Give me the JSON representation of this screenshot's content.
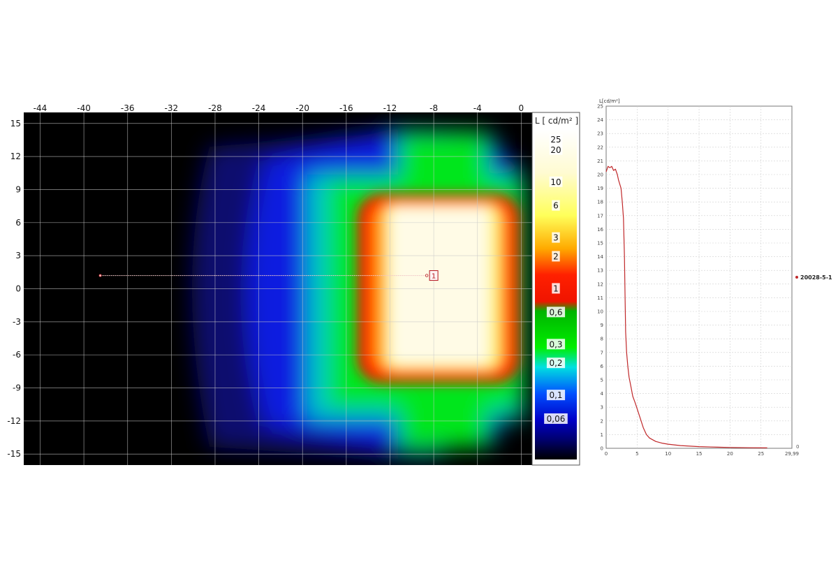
{
  "chart_data": [
    {
      "type": "heatmap",
      "title": "",
      "colorbar": {
        "title": "L [ cd/m² ]",
        "labels": [
          "25",
          "20",
          "10",
          "6",
          "3",
          "2",
          "1",
          "0,6",
          "0,3",
          "0,2",
          "0,1",
          "0,06"
        ],
        "label_values": [
          25,
          20,
          10,
          6,
          3,
          2,
          1,
          0.6,
          0.3,
          0.2,
          0.1,
          0.06
        ]
      },
      "x_axis": {
        "ticks": [
          "-44",
          "-40",
          "-36",
          "-32",
          "-28",
          "-24",
          "-20",
          "-16",
          "-12",
          "-8",
          "-4",
          "0"
        ],
        "tick_values": [
          -44,
          -40,
          -36,
          -32,
          -28,
          -24,
          -20,
          -16,
          -12,
          -8,
          -4,
          0
        ],
        "range": [
          -45.5,
          1.0
        ],
        "position": "top"
      },
      "y_axis": {
        "ticks": [
          "15",
          "12",
          "9",
          "6",
          "3",
          "0",
          "-3",
          "-6",
          "-9",
          "-12",
          "-15"
        ],
        "tick_values": [
          15,
          12,
          9,
          6,
          3,
          0,
          -3,
          -6,
          -9,
          -12,
          -15
        ],
        "range": [
          -16,
          16
        ]
      },
      "grid": true,
      "luminous_zone": {
        "x_range": [
          -12,
          -4
        ],
        "y_range": [
          -7,
          8
        ],
        "peak_luminance": 20.5
      },
      "profile_line": {
        "start": [
          -38.5,
          1.2
        ],
        "end": [
          -8,
          1.2
        ],
        "marker_label": "1"
      },
      "colors": {
        "background": "#000000",
        "grid": "#c8c8c8",
        "marker": "#b4141e"
      }
    },
    {
      "type": "line",
      "title": "",
      "ylabel": "L[cd/m²]",
      "xlabel": "",
      "x_ticks": [
        "0",
        "5",
        "10",
        "15",
        "20",
        "25",
        "29,99"
      ],
      "x_tick_values": [
        0,
        5,
        10,
        15,
        20,
        25,
        29.99
      ],
      "y_ticks": [
        "0",
        "1",
        "2",
        "3",
        "4",
        "5",
        "6",
        "7",
        "8",
        "9",
        "10",
        "11",
        "12",
        "13",
        "14",
        "15",
        "16",
        "17",
        "18",
        "19",
        "20",
        "21",
        "22",
        "23",
        "24",
        "25"
      ],
      "xlim": [
        0,
        29.99
      ],
      "ylim": [
        0,
        25
      ],
      "grid": true,
      "legend": {
        "position": "right",
        "entries": [
          "20028-5-1"
        ]
      },
      "end_marker": "0",
      "series": [
        {
          "name": "20028-5-1",
          "color": "#c0282a",
          "x": [
            0,
            0.3,
            0.6,
            0.9,
            1.2,
            1.5,
            1.8,
            2.0,
            2.2,
            2.4,
            2.6,
            2.8,
            2.95,
            3.05,
            3.15,
            3.3,
            3.5,
            3.7,
            4.0,
            4.3,
            4.7,
            5.0,
            5.5,
            6.0,
            6.5,
            7.0,
            8.0,
            9.0,
            10.0,
            12.0,
            15.0,
            18.0,
            20.0,
            23.0,
            26.0
          ],
          "y": [
            20.2,
            20.6,
            20.5,
            20.6,
            20.3,
            20.4,
            20.0,
            19.6,
            19.3,
            19.0,
            18.0,
            16.8,
            14.0,
            11.0,
            8.5,
            7.0,
            6.0,
            5.2,
            4.5,
            3.8,
            3.3,
            2.9,
            2.2,
            1.5,
            1.0,
            0.75,
            0.5,
            0.38,
            0.3,
            0.2,
            0.12,
            0.08,
            0.06,
            0.04,
            0.03
          ]
        }
      ]
    }
  ]
}
